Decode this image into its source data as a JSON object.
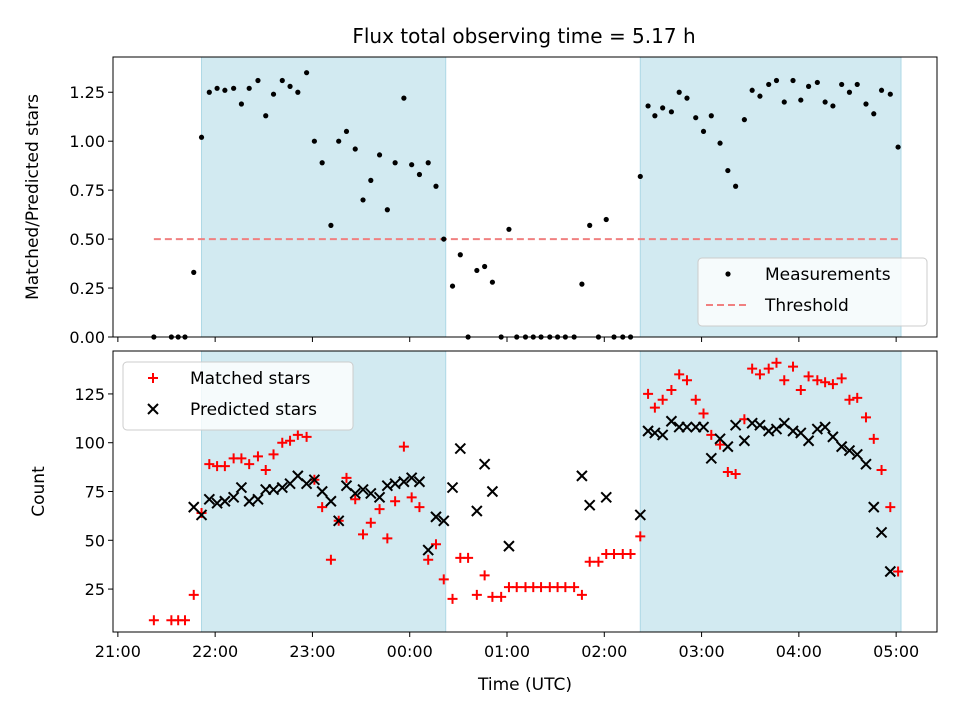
{
  "title": "Flux total observing time = 5.17 h",
  "chart_data": [
    {
      "type": "scatter",
      "panel": "top",
      "ylabel": "Matched/Predicted stars",
      "xlabel": "",
      "xlim": [
        -0.05,
        8.42
      ],
      "ylim": [
        0,
        1.43
      ],
      "yticks": [
        0,
        0.25,
        0.5,
        0.75,
        1.0,
        1.25
      ],
      "ytick_labels": [
        "0.00",
        "0.25",
        "0.50",
        "0.75",
        "1.00",
        "1.25"
      ],
      "shaded_spans": [
        [
          0.86,
          3.37
        ],
        [
          5.37,
          8.05
        ]
      ],
      "threshold": {
        "name": "Threshold",
        "value": 0.5,
        "x_start": 0.37,
        "x_end": 8.05,
        "color": "#f08080"
      },
      "legend": {
        "location": "lower right",
        "entries": [
          "Measurements",
          "Threshold"
        ]
      },
      "series": [
        {
          "name": "Measurements",
          "color": "#000000",
          "points": [
            [
              0.37,
              0.0
            ],
            [
              0.55,
              0.0
            ],
            [
              0.62,
              0.0
            ],
            [
              0.69,
              0.0
            ],
            [
              0.78,
              0.33
            ],
            [
              0.86,
              1.02
            ],
            [
              0.94,
              1.25
            ],
            [
              1.02,
              1.27
            ],
            [
              1.1,
              1.26
            ],
            [
              1.19,
              1.27
            ],
            [
              1.27,
              1.19
            ],
            [
              1.35,
              1.27
            ],
            [
              1.44,
              1.31
            ],
            [
              1.52,
              1.13
            ],
            [
              1.6,
              1.24
            ],
            [
              1.69,
              1.31
            ],
            [
              1.77,
              1.28
            ],
            [
              1.85,
              1.25
            ],
            [
              1.94,
              1.35
            ],
            [
              2.02,
              1.0
            ],
            [
              2.1,
              0.89
            ],
            [
              2.19,
              0.57
            ],
            [
              2.27,
              1.0
            ],
            [
              2.35,
              1.05
            ],
            [
              2.44,
              0.96
            ],
            [
              2.52,
              0.7
            ],
            [
              2.6,
              0.8
            ],
            [
              2.69,
              0.93
            ],
            [
              2.77,
              0.65
            ],
            [
              2.85,
              0.89
            ],
            [
              2.94,
              1.22
            ],
            [
              3.02,
              0.88
            ],
            [
              3.1,
              0.83
            ],
            [
              3.19,
              0.89
            ],
            [
              3.27,
              0.77
            ],
            [
              3.35,
              0.5
            ],
            [
              3.44,
              0.26
            ],
            [
              3.52,
              0.42
            ],
            [
              3.6,
              0.0
            ],
            [
              3.69,
              0.34
            ],
            [
              3.77,
              0.36
            ],
            [
              3.85,
              0.28
            ],
            [
              3.94,
              0.0
            ],
            [
              4.02,
              0.55
            ],
            [
              4.1,
              0.0
            ],
            [
              4.19,
              0.0
            ],
            [
              4.27,
              0.0
            ],
            [
              4.35,
              0.0
            ],
            [
              4.44,
              0.0
            ],
            [
              4.52,
              0.0
            ],
            [
              4.6,
              0.0
            ],
            [
              4.69,
              0.0
            ],
            [
              4.77,
              0.27
            ],
            [
              4.85,
              0.57
            ],
            [
              4.94,
              0.0
            ],
            [
              5.02,
              0.6
            ],
            [
              5.1,
              0.0
            ],
            [
              5.19,
              0.0
            ],
            [
              5.27,
              0.0
            ],
            [
              5.37,
              0.82
            ],
            [
              5.45,
              1.18
            ],
            [
              5.52,
              1.13
            ],
            [
              5.6,
              1.17
            ],
            [
              5.69,
              1.15
            ],
            [
              5.77,
              1.25
            ],
            [
              5.85,
              1.22
            ],
            [
              5.94,
              1.12
            ],
            [
              6.02,
              1.05
            ],
            [
              6.1,
              1.13
            ],
            [
              6.19,
              0.99
            ],
            [
              6.27,
              0.85
            ],
            [
              6.35,
              0.77
            ],
            [
              6.44,
              1.11
            ],
            [
              6.52,
              1.26
            ],
            [
              6.6,
              1.23
            ],
            [
              6.69,
              1.29
            ],
            [
              6.77,
              1.31
            ],
            [
              6.85,
              1.2
            ],
            [
              6.94,
              1.31
            ],
            [
              7.02,
              1.21
            ],
            [
              7.1,
              1.28
            ],
            [
              7.19,
              1.3
            ],
            [
              7.27,
              1.2
            ],
            [
              7.35,
              1.18
            ],
            [
              7.44,
              1.29
            ],
            [
              7.52,
              1.25
            ],
            [
              7.6,
              1.29
            ],
            [
              7.69,
              1.19
            ],
            [
              7.77,
              1.14
            ],
            [
              7.85,
              1.26
            ],
            [
              7.94,
              1.24
            ],
            [
              8.02,
              0.97
            ]
          ]
        }
      ]
    },
    {
      "type": "scatter",
      "panel": "bottom",
      "ylabel": "Count",
      "xlabel": "Time (UTC)",
      "xlim": [
        -0.05,
        8.42
      ],
      "ylim": [
        3,
        147
      ],
      "yticks": [
        25,
        50,
        75,
        100,
        125
      ],
      "xticks": [
        0,
        1,
        2,
        3,
        4,
        5,
        6,
        7,
        8
      ],
      "xtick_labels": [
        "21:00",
        "22:00",
        "23:00",
        "00:00",
        "01:00",
        "02:00",
        "03:00",
        "04:00",
        "05:00"
      ],
      "shaded_spans": [
        [
          0.86,
          3.37
        ],
        [
          5.37,
          8.05
        ]
      ],
      "legend": {
        "location": "upper left",
        "entries": [
          "Matched stars",
          "Predicted stars"
        ]
      },
      "series": [
        {
          "name": "Matched stars",
          "marker": "+",
          "color": "#ff0000",
          "points": [
            [
              0.37,
              9
            ],
            [
              0.55,
              9
            ],
            [
              0.62,
              9
            ],
            [
              0.69,
              9
            ],
            [
              0.78,
              22
            ],
            [
              0.86,
              64
            ],
            [
              0.94,
              89
            ],
            [
              1.02,
              88
            ],
            [
              1.1,
              88
            ],
            [
              1.19,
              92
            ],
            [
              1.27,
              92
            ],
            [
              1.35,
              89
            ],
            [
              1.44,
              93
            ],
            [
              1.52,
              86
            ],
            [
              1.6,
              94
            ],
            [
              1.69,
              100
            ],
            [
              1.77,
              101
            ],
            [
              1.85,
              104
            ],
            [
              1.94,
              103
            ],
            [
              2.02,
              81
            ],
            [
              2.1,
              67
            ],
            [
              2.19,
              40
            ],
            [
              2.27,
              60
            ],
            [
              2.35,
              82
            ],
            [
              2.44,
              71
            ],
            [
              2.52,
              53
            ],
            [
              2.6,
              59
            ],
            [
              2.69,
              66
            ],
            [
              2.77,
              51
            ],
            [
              2.85,
              70
            ],
            [
              2.94,
              98
            ],
            [
              3.02,
              72
            ],
            [
              3.1,
              67
            ],
            [
              3.19,
              40
            ],
            [
              3.27,
              48
            ],
            [
              3.35,
              30
            ],
            [
              3.44,
              20
            ],
            [
              3.52,
              41
            ],
            [
              3.6,
              41
            ],
            [
              3.69,
              22
            ],
            [
              3.77,
              32
            ],
            [
              3.85,
              21
            ],
            [
              3.94,
              21
            ],
            [
              4.02,
              26
            ],
            [
              4.1,
              26
            ],
            [
              4.19,
              26
            ],
            [
              4.27,
              26
            ],
            [
              4.35,
              26
            ],
            [
              4.44,
              26
            ],
            [
              4.52,
              26
            ],
            [
              4.6,
              26
            ],
            [
              4.69,
              26
            ],
            [
              4.77,
              22
            ],
            [
              4.85,
              39
            ],
            [
              4.94,
              39
            ],
            [
              5.02,
              43
            ],
            [
              5.1,
              43
            ],
            [
              5.19,
              43
            ],
            [
              5.27,
              43
            ],
            [
              5.37,
              52
            ],
            [
              5.45,
              125
            ],
            [
              5.52,
              118
            ],
            [
              5.6,
              122
            ],
            [
              5.69,
              127
            ],
            [
              5.77,
              135
            ],
            [
              5.85,
              132
            ],
            [
              5.94,
              122
            ],
            [
              6.02,
              115
            ],
            [
              6.1,
              104
            ],
            [
              6.19,
              99
            ],
            [
              6.27,
              85
            ],
            [
              6.35,
              84
            ],
            [
              6.44,
              112
            ],
            [
              6.52,
              138
            ],
            [
              6.6,
              135
            ],
            [
              6.69,
              138
            ],
            [
              6.77,
              141
            ],
            [
              6.85,
              132
            ],
            [
              6.94,
              139
            ],
            [
              7.02,
              127
            ],
            [
              7.1,
              134
            ],
            [
              7.19,
              132
            ],
            [
              7.27,
              131
            ],
            [
              7.35,
              130
            ],
            [
              7.44,
              133
            ],
            [
              7.52,
              122
            ],
            [
              7.6,
              123
            ],
            [
              7.69,
              113
            ],
            [
              7.77,
              102
            ],
            [
              7.85,
              86
            ],
            [
              7.94,
              67
            ],
            [
              8.02,
              34
            ]
          ]
        },
        {
          "name": "Predicted stars",
          "marker": "x",
          "color": "#000000",
          "points": [
            [
              0.78,
              67
            ],
            [
              0.86,
              63
            ],
            [
              0.94,
              71
            ],
            [
              1.02,
              69
            ],
            [
              1.1,
              70
            ],
            [
              1.19,
              72
            ],
            [
              1.27,
              77
            ],
            [
              1.35,
              70
            ],
            [
              1.44,
              71
            ],
            [
              1.52,
              76
            ],
            [
              1.6,
              76
            ],
            [
              1.69,
              77
            ],
            [
              1.77,
              79
            ],
            [
              1.85,
              83
            ],
            [
              1.94,
              79
            ],
            [
              2.02,
              81
            ],
            [
              2.1,
              75
            ],
            [
              2.19,
              70
            ],
            [
              2.27,
              60
            ],
            [
              2.35,
              78
            ],
            [
              2.44,
              74
            ],
            [
              2.52,
              76
            ],
            [
              2.6,
              74
            ],
            [
              2.69,
              72
            ],
            [
              2.77,
              78
            ],
            [
              2.85,
              79
            ],
            [
              2.94,
              80
            ],
            [
              3.02,
              82
            ],
            [
              3.1,
              80
            ],
            [
              3.19,
              45
            ],
            [
              3.27,
              62
            ],
            [
              3.35,
              60
            ],
            [
              3.44,
              77
            ],
            [
              3.52,
              97
            ],
            [
              3.69,
              65
            ],
            [
              3.77,
              89
            ],
            [
              3.85,
              75
            ],
            [
              4.02,
              47
            ],
            [
              4.77,
              83
            ],
            [
              4.85,
              68
            ],
            [
              5.02,
              72
            ],
            [
              5.37,
              63
            ],
            [
              5.45,
              106
            ],
            [
              5.52,
              105
            ],
            [
              5.6,
              104
            ],
            [
              5.69,
              111
            ],
            [
              5.77,
              108
            ],
            [
              5.85,
              108
            ],
            [
              5.94,
              108
            ],
            [
              6.02,
              108
            ],
            [
              6.1,
              92
            ],
            [
              6.19,
              102
            ],
            [
              6.27,
              98
            ],
            [
              6.35,
              109
            ],
            [
              6.44,
              101
            ],
            [
              6.52,
              110
            ],
            [
              6.6,
              109
            ],
            [
              6.69,
              106
            ],
            [
              6.77,
              107
            ],
            [
              6.85,
              110
            ],
            [
              6.94,
              106
            ],
            [
              7.02,
              105
            ],
            [
              7.1,
              101
            ],
            [
              7.19,
              107
            ],
            [
              7.27,
              108
            ],
            [
              7.35,
              103
            ],
            [
              7.44,
              98
            ],
            [
              7.52,
              96
            ],
            [
              7.6,
              94
            ],
            [
              7.69,
              89
            ],
            [
              7.77,
              67
            ],
            [
              7.85,
              54
            ],
            [
              7.94,
              34
            ]
          ]
        }
      ]
    }
  ],
  "colors": {
    "shade": "#add8e6",
    "matched": "#ff0000",
    "predicted": "#000000",
    "threshold": "#f08080"
  }
}
